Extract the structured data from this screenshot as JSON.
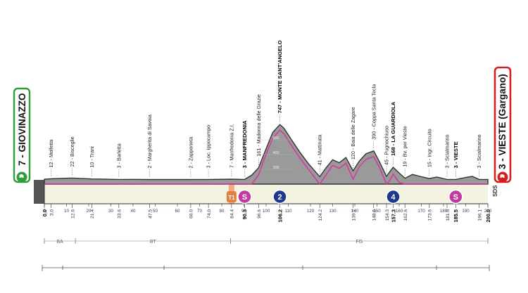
{
  "stage": {
    "start": "7 - GIOVINAZZO",
    "finish": "3 - VIESTE (Gargano)",
    "distance_km": 200.0,
    "colors": {
      "start": "#2e9d3a",
      "finish": "#d12020",
      "profile": "#9a9a9a",
      "profile_top": "#555555",
      "base": "#f3f3df",
      "line": "#d43aa0",
      "gpm": "#1d3a8a",
      "sprint": "#c03aa0",
      "km_marker": "#e08040"
    },
    "sds_label": "SDS",
    "regions": [
      {
        "label": "BA",
        "from": 0,
        "to": 14
      },
      {
        "label": "BT",
        "from": 14,
        "to": 84
      },
      {
        "label": "FG",
        "from": 84,
        "to": 200
      }
    ],
    "km_axis_ticks": [
      "0",
      "10",
      "20",
      "30",
      "40",
      "50",
      "60",
      "70",
      "80",
      "90",
      "100",
      "110",
      "120",
      "130",
      "140",
      "150",
      "160",
      "170",
      "180",
      "190",
      "200"
    ],
    "elevation_ticks": [
      "200",
      "400",
      "600"
    ]
  },
  "waypoints": [
    {
      "km": 0.0,
      "label": "",
      "km_label": "0.0",
      "bold": true
    },
    {
      "km": 3.0,
      "label": "12 - Molfetta",
      "km_label": "3.0",
      "bold": false
    },
    {
      "km": 12.6,
      "label": "22 - Bisceglie",
      "km_label": "12.6",
      "bold": false
    },
    {
      "km": 21.4,
      "label": "10 - Trani",
      "km_label": "21.4",
      "bold": false
    },
    {
      "km": 33.6,
      "label": "3 - Barletta",
      "km_label": "33.6",
      "bold": false
    },
    {
      "km": 47.5,
      "label": "2 - Margherita di Savoia",
      "km_label": "47.5",
      "bold": false
    },
    {
      "km": 66.0,
      "label": "2 - Zapponeta",
      "km_label": "66.0",
      "bold": false
    },
    {
      "km": 74.0,
      "label": "3 - Loc. Ippocampo",
      "km_label": "74.0",
      "bold": false
    },
    {
      "km": 84.4,
      "label": "7 - Manfredonia Z.I.",
      "km_label": "84.4",
      "bold": false
    },
    {
      "km": 90.3,
      "label": "3 - MANFREDONIA",
      "km_label": "90.3",
      "bold": true
    },
    {
      "km": 96.6,
      "label": "161 - Madonna delle Grazie",
      "km_label": "96.6",
      "bold": false
    },
    {
      "km": 106.2,
      "label": "747 - MONTE SANT'ANGELO",
      "km_label": "106.2",
      "bold": true
    },
    {
      "km": 124.2,
      "label": "41 - Mattinata",
      "km_label": "124.2",
      "bold": false
    },
    {
      "km": 139.2,
      "label": "120 - Baia delle Zagare",
      "km_label": "139.2",
      "bold": false
    },
    {
      "km": 148.5,
      "label": "390 - Coppa Santa Tecla",
      "km_label": "148.5",
      "bold": false
    },
    {
      "km": 154.3,
      "label": "45 - Pugnochiuso",
      "km_label": "154.3",
      "bold": false
    },
    {
      "km": 157.3,
      "label": "168 - LA GUARDIOLA",
      "km_label": "157.3",
      "bold": true
    },
    {
      "km": 162.6,
      "label": "19 - Bv. per Vieste",
      "km_label": "162.6",
      "bold": false
    },
    {
      "km": 173.6,
      "label": "15 - Ingr. Circuito",
      "km_label": "173.6",
      "bold": false
    },
    {
      "km": 181.6,
      "label": "3 - Scialmarino",
      "km_label": "181.6",
      "bold": false
    },
    {
      "km": 185.5,
      "label": "3 - VIESTE",
      "km_label": "185.5",
      "bold": true
    },
    {
      "km": 196.1,
      "label": "3 - Scialmarino",
      "km_label": "196.1",
      "bold": false
    },
    {
      "km": 200.0,
      "label": "",
      "km_label": "200.0",
      "bold": true
    }
  ],
  "profile": [
    {
      "km": 0,
      "elev": 7
    },
    {
      "km": 3,
      "elev": 12
    },
    {
      "km": 8,
      "elev": 18
    },
    {
      "km": 12.6,
      "elev": 22
    },
    {
      "km": 17,
      "elev": 15
    },
    {
      "km": 21.4,
      "elev": 10
    },
    {
      "km": 27,
      "elev": 8
    },
    {
      "km": 33.6,
      "elev": 3
    },
    {
      "km": 40,
      "elev": 4
    },
    {
      "km": 47.5,
      "elev": 2
    },
    {
      "km": 56,
      "elev": 2
    },
    {
      "km": 66,
      "elev": 2
    },
    {
      "km": 74,
      "elev": 3
    },
    {
      "km": 84.4,
      "elev": 7
    },
    {
      "km": 90.3,
      "elev": 3
    },
    {
      "km": 93.5,
      "elev": 60
    },
    {
      "km": 96.6,
      "elev": 161
    },
    {
      "km": 100,
      "elev": 420
    },
    {
      "km": 103,
      "elev": 640
    },
    {
      "km": 106.2,
      "elev": 747
    },
    {
      "km": 108,
      "elev": 700
    },
    {
      "km": 111,
      "elev": 560
    },
    {
      "km": 115,
      "elev": 380
    },
    {
      "km": 119,
      "elev": 220
    },
    {
      "km": 124.2,
      "elev": 41
    },
    {
      "km": 127,
      "elev": 160
    },
    {
      "km": 130,
      "elev": 270
    },
    {
      "km": 133,
      "elev": 230
    },
    {
      "km": 136,
      "elev": 300
    },
    {
      "km": 139.2,
      "elev": 120
    },
    {
      "km": 142,
      "elev": 250
    },
    {
      "km": 145,
      "elev": 350
    },
    {
      "km": 148.5,
      "elev": 390
    },
    {
      "km": 151,
      "elev": 250
    },
    {
      "km": 154.3,
      "elev": 45
    },
    {
      "km": 155.8,
      "elev": 110
    },
    {
      "km": 157.3,
      "elev": 168
    },
    {
      "km": 160,
      "elev": 90
    },
    {
      "km": 162.6,
      "elev": 19
    },
    {
      "km": 166,
      "elev": 70
    },
    {
      "km": 170,
      "elev": 40
    },
    {
      "km": 173.6,
      "elev": 15
    },
    {
      "km": 177,
      "elev": 35
    },
    {
      "km": 181.6,
      "elev": 3
    },
    {
      "km": 185.5,
      "elev": 3
    },
    {
      "km": 190,
      "elev": 30
    },
    {
      "km": 193,
      "elev": 45
    },
    {
      "km": 196.1,
      "elev": 3
    },
    {
      "km": 200,
      "elev": 3
    }
  ],
  "markers": [
    {
      "type": "intermediate-sprint",
      "km": 90.3,
      "text": "S"
    },
    {
      "type": "km-to-go",
      "km": 84.4,
      "text": "T1"
    },
    {
      "type": "gpm",
      "km": 106.2,
      "text": "2"
    },
    {
      "type": "gpm",
      "km": 157.3,
      "text": "4"
    },
    {
      "type": "intermediate-sprint",
      "km": 185.5,
      "text": "S"
    }
  ]
}
